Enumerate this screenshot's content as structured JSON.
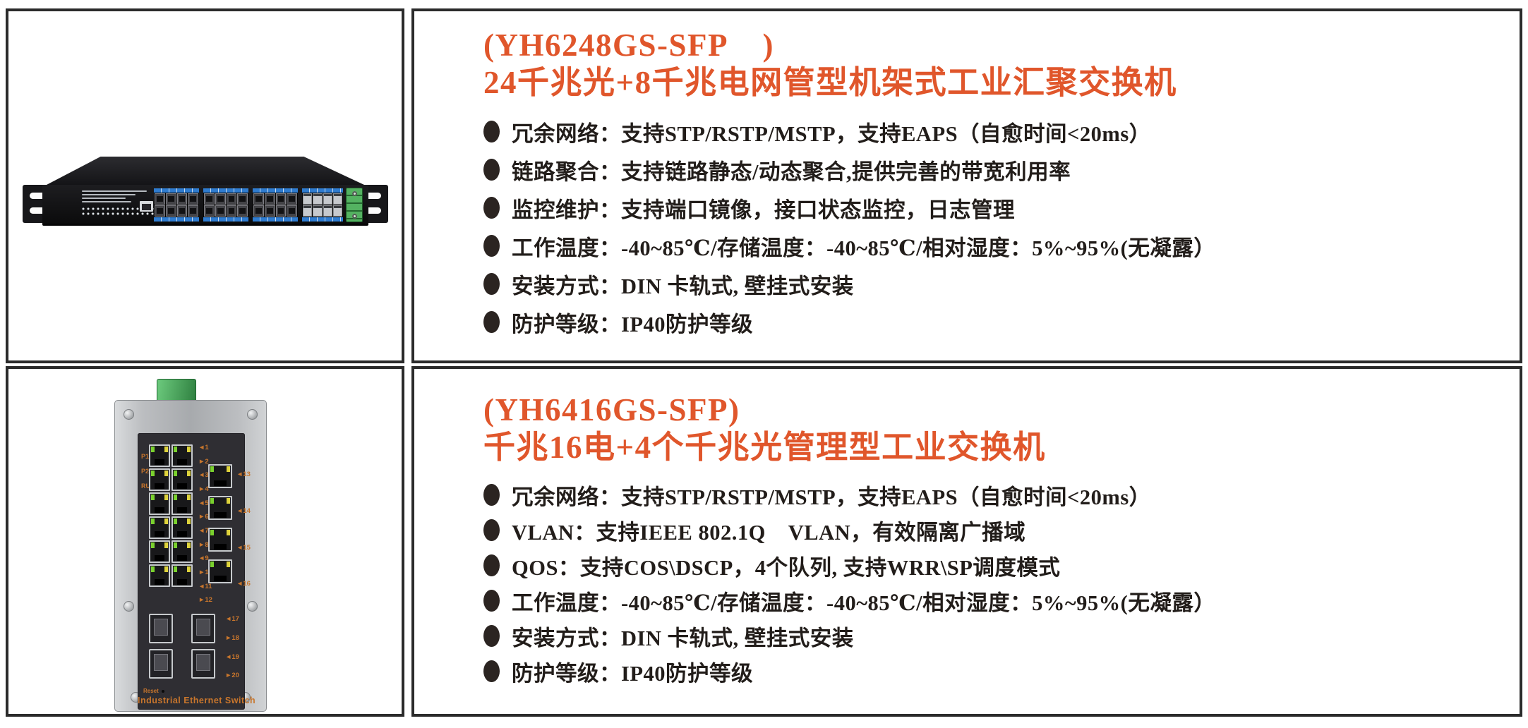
{
  "colors": {
    "accent_title": "#e0562b",
    "body_text": "#221d1a",
    "cell_border": "#2b2b2b",
    "port_label_orange": "#c9762c",
    "sfp_strip_blue": "#2f7cd0",
    "terminal_green": "#2f8040"
  },
  "products": [
    {
      "model_line": "(YH6248GS-SFP    )",
      "title_line": "24千兆光+8千兆电网管型机架式工业汇聚交换机",
      "features": [
        "冗余网络：支持STP/RSTP/MSTP，支持EAPS（自愈时间<20ms）",
        "链路聚合：支持链路静态/动态聚合,提供完善的带宽利用率",
        "监控维护：支持端口镜像，接口状态监控，日志管理",
        "工作温度：-40~85℃/存储温度：-40~85℃/相对湿度：5%~95%(无凝露）",
        "安装方式：DIN 卡轨式, 壁挂式安装",
        "防护等级：IP40防护等级"
      ],
      "image": {
        "type": "rack-mount industrial switch photo",
        "sfp_ports_per_group": 8,
        "rj45_count": 8
      }
    },
    {
      "model_line": "(YH6416GS-SFP)",
      "title_line": "千兆16电+4个千兆光管理型工业交换机",
      "features": [
        "冗余网络：支持STP/RSTP/MSTP，支持EAPS（自愈时间<20ms）",
        "VLAN：支持IEEE 802.1Q    VLAN，有效隔离广播域",
        "QOS：支持COS\\DSCP，4个队列, 支持WRR\\SP调度模式",
        "工作温度：-40~85℃/存储温度：-40~85℃/相对湿度：5%~95%(无凝露）",
        "安装方式：DIN 卡轨式, 壁挂式安装",
        "防护等级：IP40防护等级"
      ],
      "image": {
        "type": "DIN-rail industrial switch photo",
        "led_labels": [
          "P1",
          "P2",
          "RUN"
        ],
        "rj45_left_count": 12,
        "rj45_right_count": 4,
        "sfp_count": 4,
        "port_numbers_left": [
          "◄1",
          "►2",
          "◄3",
          "►4",
          "◄5",
          "►6",
          "◄7",
          "►8",
          "◄9",
          "►10",
          "◄11",
          "►12"
        ],
        "port_numbers_right": [
          "◄13",
          "◄14",
          "◄15",
          "◄16"
        ],
        "sfp_numbers": [
          "◄17",
          "►18",
          "◄19",
          "►20"
        ],
        "reset_label": "Reset",
        "caption": "Industrial Ethernet Switch"
      }
    }
  ]
}
